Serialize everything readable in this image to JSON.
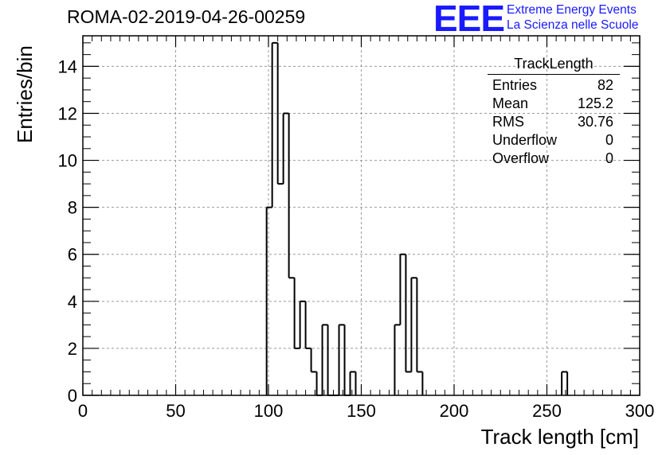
{
  "title": "ROMA-02-2019-04-26-00259",
  "logo": {
    "mark": "EEE",
    "line1": "Extreme Energy Events",
    "line2": "La Scienza nelle Scuole",
    "color": "#1a1aff"
  },
  "stats": {
    "name": "TrackLength",
    "rows": [
      {
        "label": "Entries",
        "value": "82"
      },
      {
        "label": "Mean",
        "value": "125.2"
      },
      {
        "label": "RMS",
        "value": "30.76"
      },
      {
        "label": "Underflow",
        "value": "0"
      },
      {
        "label": "Overflow",
        "value": "0"
      }
    ]
  },
  "chart_data": {
    "type": "bar",
    "xlabel": "Track length [cm]",
    "ylabel": "Entries/bin",
    "xlim": [
      0,
      300
    ],
    "ylim": [
      0,
      15.3
    ],
    "grid": true,
    "bin_width": 3,
    "x_ticks": [
      0,
      50,
      100,
      150,
      200,
      250,
      300
    ],
    "y_ticks": [
      0,
      2,
      4,
      6,
      8,
      10,
      12,
      14
    ],
    "bins": [
      {
        "x": 99,
        "value": 8
      },
      {
        "x": 102,
        "value": 15
      },
      {
        "x": 105,
        "value": 9
      },
      {
        "x": 108,
        "value": 12
      },
      {
        "x": 111,
        "value": 5
      },
      {
        "x": 114,
        "value": 2
      },
      {
        "x": 117,
        "value": 4
      },
      {
        "x": 120,
        "value": 2
      },
      {
        "x": 123,
        "value": 1
      },
      {
        "x": 126,
        "value": 0
      },
      {
        "x": 129,
        "value": 3
      },
      {
        "x": 132,
        "value": 0
      },
      {
        "x": 135,
        "value": 0
      },
      {
        "x": 138,
        "value": 3
      },
      {
        "x": 141,
        "value": 0
      },
      {
        "x": 144,
        "value": 1
      },
      {
        "x": 168,
        "value": 3
      },
      {
        "x": 171,
        "value": 6
      },
      {
        "x": 174,
        "value": 1
      },
      {
        "x": 177,
        "value": 5
      },
      {
        "x": 180,
        "value": 1
      },
      {
        "x": 258,
        "value": 1
      }
    ]
  }
}
